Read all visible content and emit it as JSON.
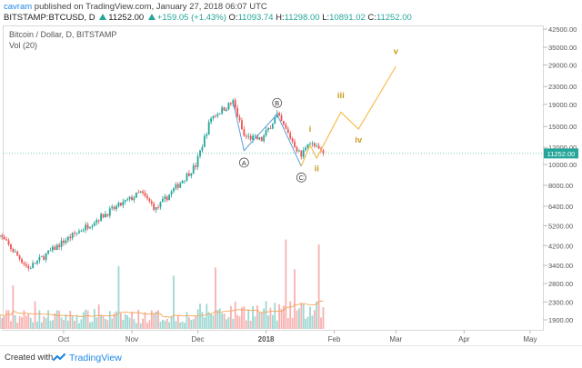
{
  "header": {
    "user": "cavram",
    "published_text": "published on TradingView.com, January 27, 2018 06:07 UTC",
    "symbol": "BITSTAMP:BTCUSD, D",
    "last": "11252.00",
    "change": "+159.05 (+1.43%)",
    "o_label": "O:",
    "o_value": "11093.74",
    "h_label": "H:",
    "h_value": "11298.00",
    "l_label": "L:",
    "l_value": "10891.02",
    "c_label": "C:",
    "c_value": "11252.00"
  },
  "legend": {
    "series_title": "Bitcoin / Dollar, D, BITSTAMP",
    "volume_title": "Vol (20)"
  },
  "footer": {
    "created_with": "Created with",
    "brand": "TradingView"
  },
  "colors": {
    "up": "#26a69a",
    "down": "#ef5350",
    "wave_abc": "#5b9bd5",
    "projection": "#f5b942",
    "label_gold": "#c89b1e",
    "vol_ma": "#f2a65a",
    "price_line": "#26a69a"
  },
  "chart_data": {
    "type": "candlestick",
    "scale": "log",
    "y_tick_labels": [
      "42500.00",
      "35000.00",
      "29000.00",
      "23000.00",
      "19000.00",
      "15000.00",
      "12000.00",
      "10000.00",
      "8000.00",
      "6400.00",
      "5200.00",
      "4200.00",
      "3400.00",
      "2800.00",
      "2300.00",
      "1900.00"
    ],
    "x_tick_labels": [
      "Oct",
      "Nov",
      "Dec",
      "2018",
      "Feb",
      "Mar",
      "Apr",
      "May"
    ],
    "last_price_label": "11252.00",
    "last_price": 11252,
    "price_anchors": [
      {
        "date": "2017-09-01",
        "price": 4800
      },
      {
        "date": "2017-09-15",
        "price": 3300
      },
      {
        "date": "2017-10-01",
        "price": 4400
      },
      {
        "date": "2017-10-20",
        "price": 5900
      },
      {
        "date": "2017-11-05",
        "price": 7400
      },
      {
        "date": "2017-11-12",
        "price": 6200
      },
      {
        "date": "2017-11-30",
        "price": 9900
      },
      {
        "date": "2017-12-07",
        "price": 16500
      },
      {
        "date": "2017-12-17",
        "price": 19500
      },
      {
        "date": "2017-12-22",
        "price": 13500
      },
      {
        "date": "2017-12-30",
        "price": 13000
      },
      {
        "date": "2018-01-06",
        "price": 17000
      },
      {
        "date": "2018-01-17",
        "price": 10900
      },
      {
        "date": "2018-01-20",
        "price": 12800
      },
      {
        "date": "2018-01-27",
        "price": 11252
      }
    ],
    "wave_abc": [
      {
        "date": "2017-12-17",
        "price": 19500
      },
      {
        "date": "2017-12-22",
        "price": 11600
      },
      {
        "date": "2018-01-06",
        "price": 17100
      },
      {
        "date": "2018-01-17",
        "price": 9800
      }
    ],
    "wave_labels_abc": [
      {
        "text": "A",
        "date": "2017-12-22",
        "price": 10200
      },
      {
        "text": "B",
        "date": "2018-01-06",
        "price": 19300
      },
      {
        "text": "C",
        "date": "2018-01-17",
        "price": 8700
      }
    ],
    "projection": [
      {
        "date": "2018-01-17",
        "price": 9800
      },
      {
        "date": "2018-01-21",
        "price": 12300
      },
      {
        "date": "2018-01-24",
        "price": 10700
      },
      {
        "date": "2018-02-04",
        "price": 17500
      },
      {
        "date": "2018-02-12",
        "price": 14600
      },
      {
        "date": "2018-03-01",
        "price": 28500
      }
    ],
    "wave_labels_projection": [
      {
        "text": "i",
        "date": "2018-01-21",
        "price": 14200
      },
      {
        "text": "ii",
        "date": "2018-01-24",
        "price": 9300
      },
      {
        "text": "iii",
        "date": "2018-02-04",
        "price": 20300
      },
      {
        "text": "iv",
        "date": "2018-02-12",
        "price": 12600
      },
      {
        "text": "v",
        "date": "2018-03-01",
        "price": 32500
      }
    ]
  }
}
